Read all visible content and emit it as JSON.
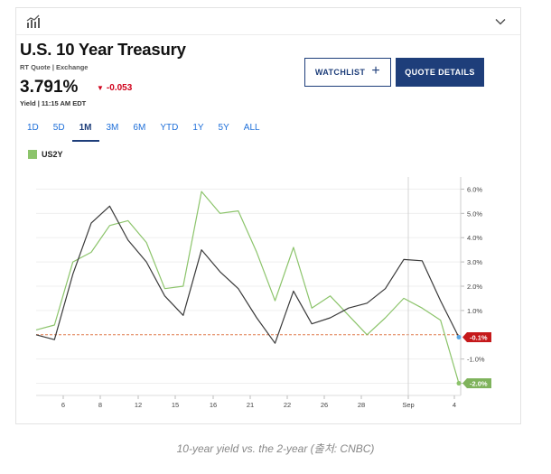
{
  "header": {
    "title": "U.S. 10 Year Treasury",
    "quote_source": "RT Quote | Exchange",
    "price": "3.791%",
    "change": "-0.053",
    "yield_time": "Yield | 11:15 AM EDT"
  },
  "buttons": {
    "watchlist": "WATCHLIST",
    "quote_details": "QUOTE DETAILS"
  },
  "tabs": [
    {
      "label": "1D",
      "active": false
    },
    {
      "label": "5D",
      "active": false
    },
    {
      "label": "1M",
      "active": true
    },
    {
      "label": "3M",
      "active": false
    },
    {
      "label": "6M",
      "active": false
    },
    {
      "label": "YTD",
      "active": false
    },
    {
      "label": "1Y",
      "active": false
    },
    {
      "label": "5Y",
      "active": false
    },
    {
      "label": "ALL",
      "active": false
    }
  ],
  "legend": {
    "label": "US2Y",
    "color": "#8cc46b"
  },
  "caption": "10-year yield vs. the 2-year (출처: CNBC)",
  "colors": {
    "brand": "#1e3e7a",
    "down": "#d0021b",
    "us10y": "#3a3a3a",
    "us2y": "#8cc46b",
    "baseline": "#e07b4f",
    "us10y_tag": "#c5191b",
    "us2y_tag": "#7fb35c"
  },
  "chart_data": {
    "type": "line",
    "x_ticks": [
      "6",
      "8",
      "12",
      "15",
      "16",
      "21",
      "22",
      "26",
      "28",
      "Sep",
      "4"
    ],
    "y_ticks": [
      "6.0%",
      "5.0%",
      "4.0%",
      "3.0%",
      "2.0%",
      "1.0%",
      "-1.0%",
      "-2.0%"
    ],
    "ylim": [
      -2.5,
      6.5
    ],
    "series": [
      {
        "name": "US10Y",
        "values": [
          0.0,
          -0.2,
          2.5,
          4.6,
          5.3,
          3.9,
          3.0,
          1.6,
          0.8,
          3.5,
          2.6,
          1.9,
          0.7,
          -0.35,
          1.8,
          0.45,
          0.7,
          1.1,
          1.3,
          1.9,
          3.1,
          3.05,
          1.4,
          -0.1
        ]
      },
      {
        "name": "US2Y",
        "values": [
          0.2,
          0.4,
          3.0,
          3.4,
          4.5,
          4.7,
          3.8,
          1.9,
          2.0,
          5.9,
          5.0,
          5.1,
          3.4,
          1.4,
          3.6,
          1.1,
          1.6,
          0.8,
          0.0,
          0.7,
          1.5,
          1.1,
          0.6,
          -2.0
        ]
      }
    ],
    "end_tags": [
      {
        "series": "US10Y",
        "label": "-0.1%"
      },
      {
        "series": "US2Y",
        "label": "-2.0%"
      }
    ]
  }
}
